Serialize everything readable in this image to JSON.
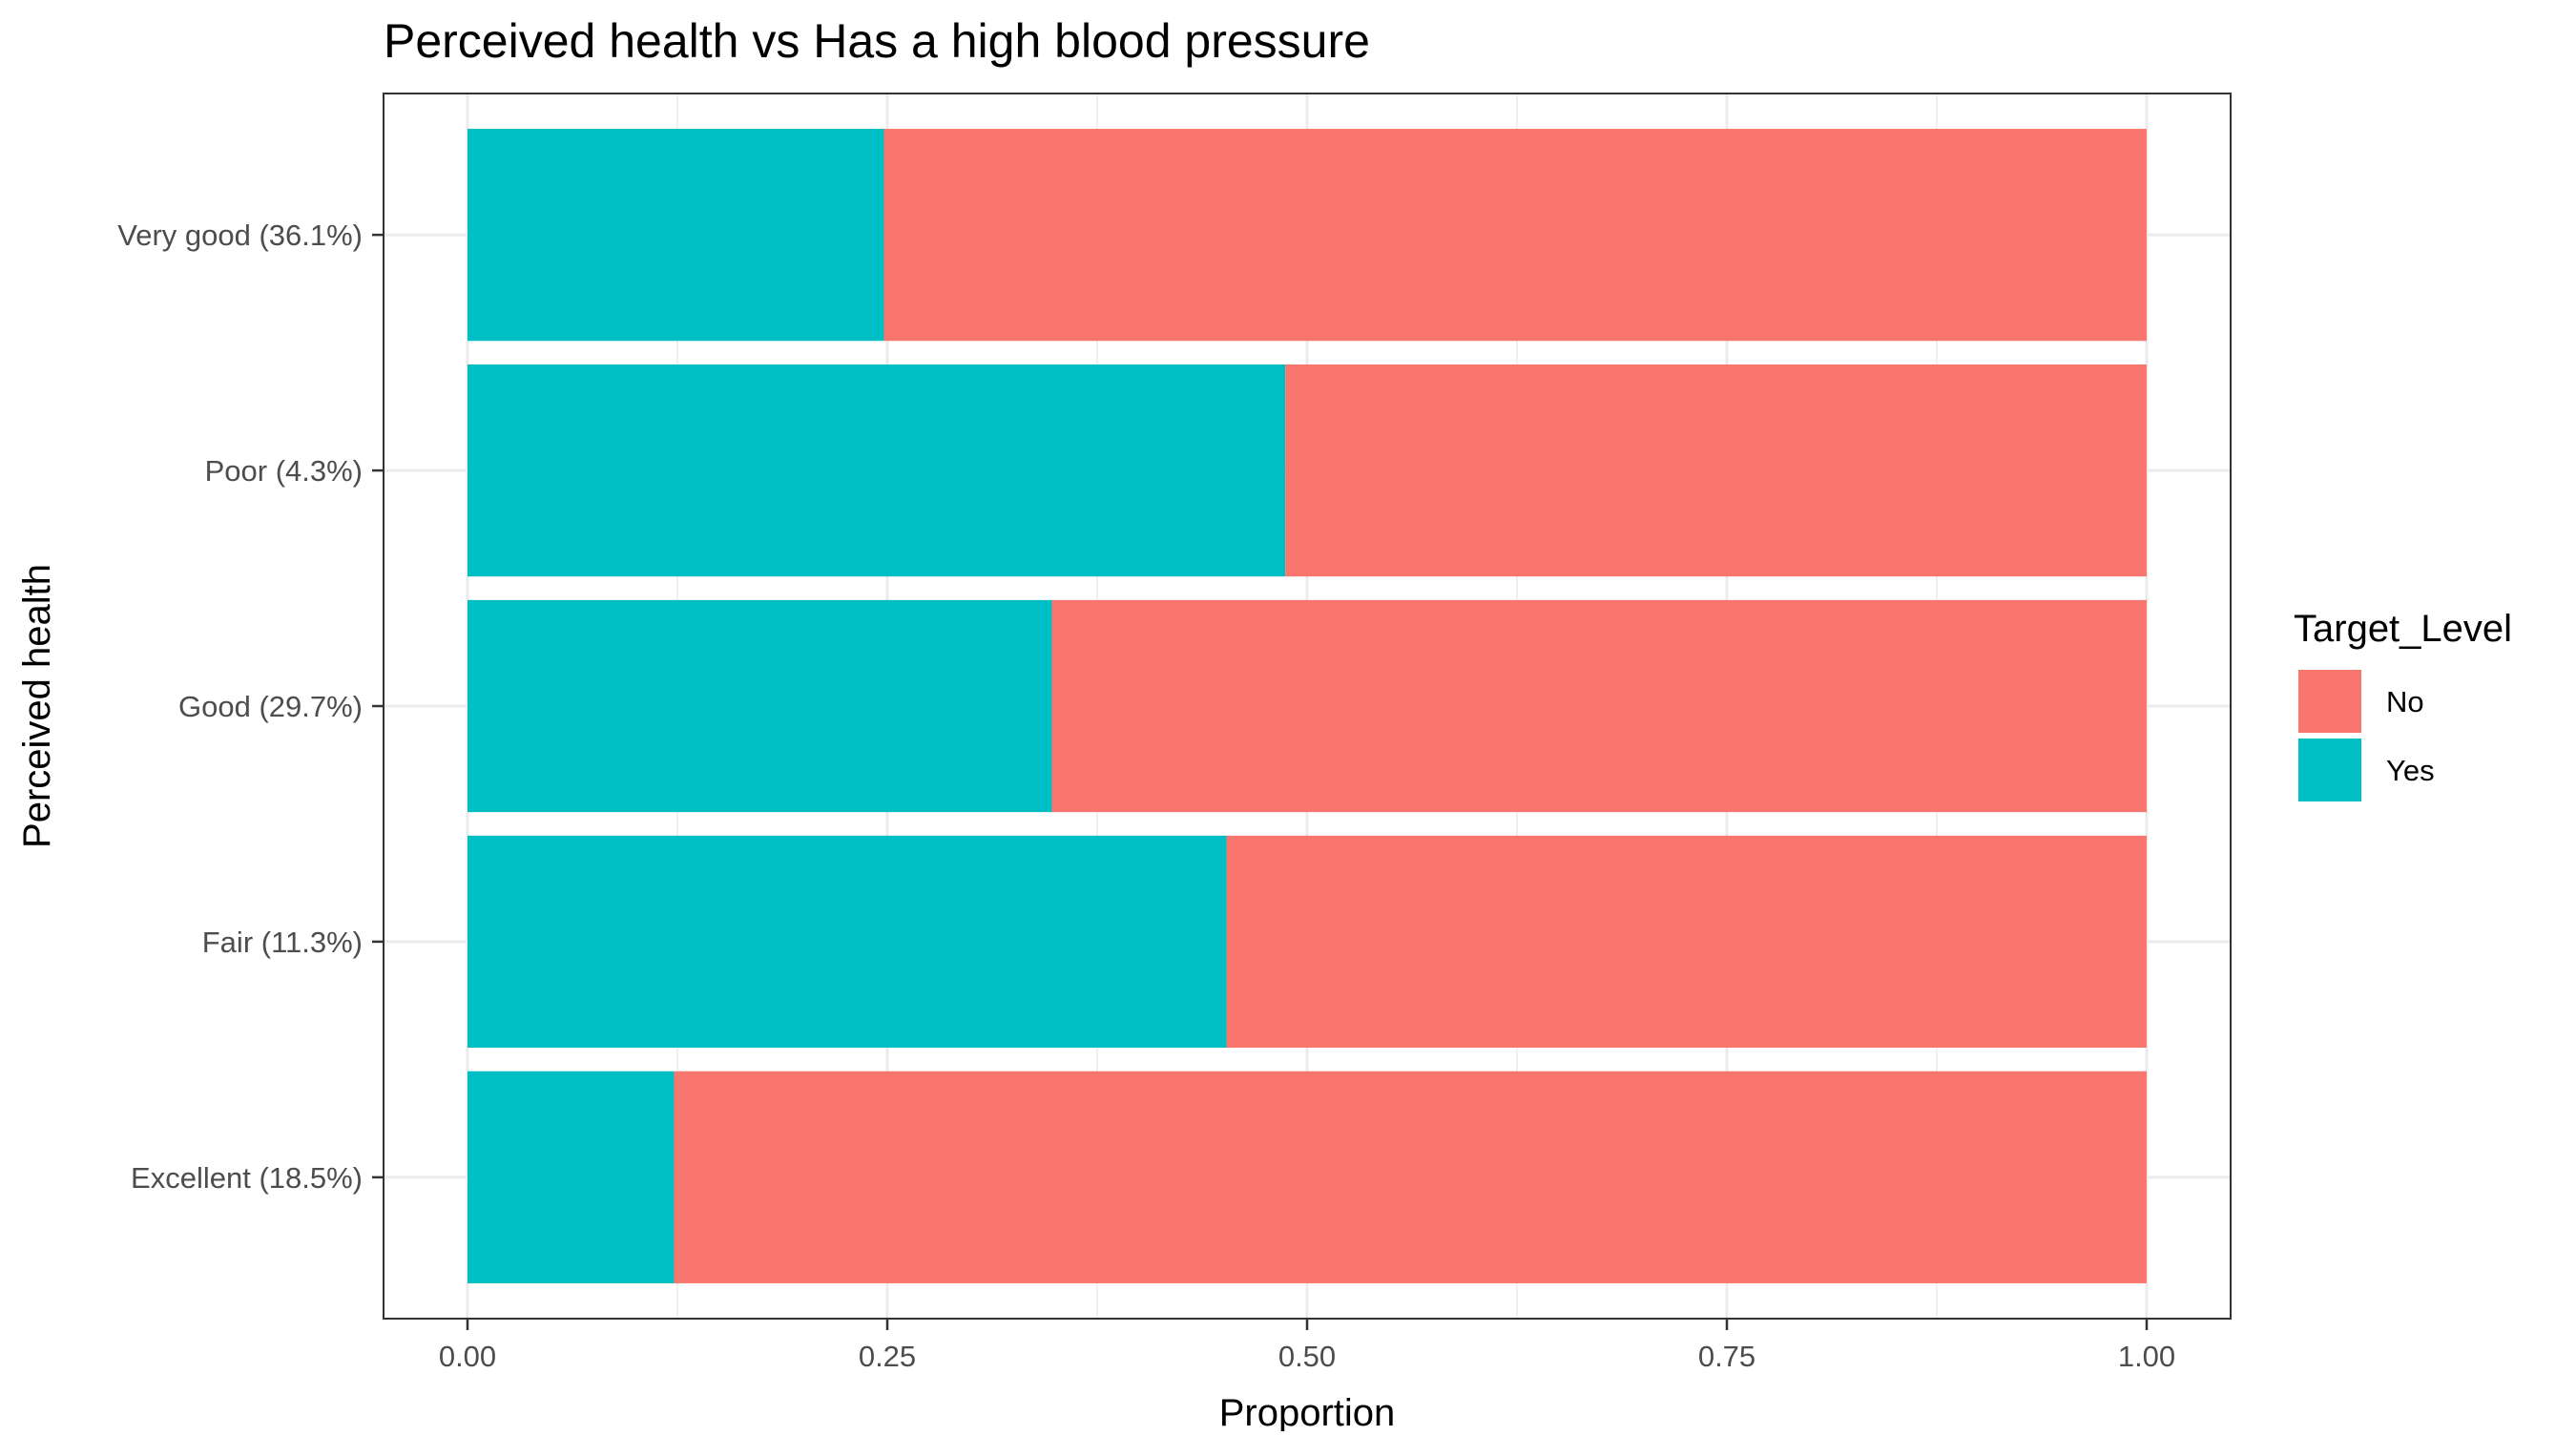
{
  "chart_data": {
    "type": "bar",
    "orientation": "horizontal",
    "stacked": true,
    "title": "Perceived health  vs Has a high blood pressure",
    "xlabel": "Proportion",
    "ylabel": "Perceived health",
    "xlim": [
      0,
      1
    ],
    "x_ticks": [
      "0.00",
      "0.25",
      "0.50",
      "0.75",
      "1.00"
    ],
    "grid": true,
    "categories": [
      "Very good (36.1%)",
      "Poor (4.3%)",
      "Good (29.7%)",
      "Fair (11.3%)",
      "Excellent (18.5%)"
    ],
    "series": [
      {
        "name": "Yes",
        "color": "#00BFC4",
        "values": [
          0.248,
          0.487,
          0.348,
          0.452,
          0.123
        ]
      },
      {
        "name": "No",
        "color": "#F8766D",
        "values": [
          0.752,
          0.513,
          0.652,
          0.548,
          0.877
        ]
      }
    ],
    "legend": {
      "title": "Target_Level",
      "placement": "right",
      "entries": [
        {
          "label": "No",
          "color": "#F8766D"
        },
        {
          "label": "Yes",
          "color": "#00BFC4"
        }
      ]
    }
  }
}
